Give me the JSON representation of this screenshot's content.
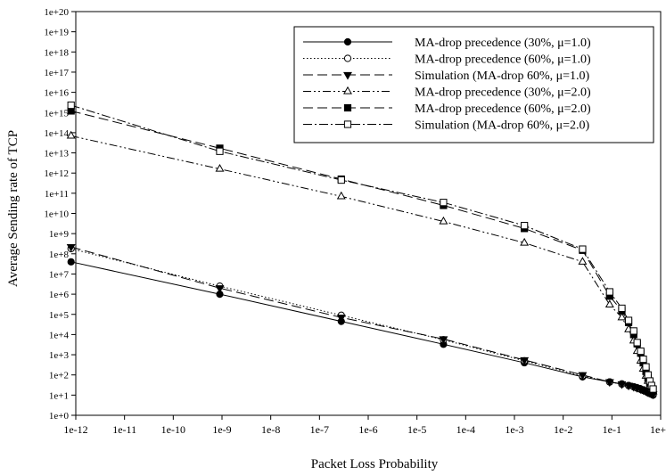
{
  "chart_data": {
    "type": "line",
    "title": "",
    "xlabel": "Packet Loss Probability",
    "ylabel": "Average Sending rate of TCP",
    "x_scale": "log",
    "y_scale": "log",
    "xlim": [
      1e-12,
      1
    ],
    "ylim": [
      1,
      1e+20
    ],
    "grid": false,
    "legend_position": "top-right",
    "x_ticks": [
      {
        "value": 1e-12,
        "label": "1e-12"
      },
      {
        "value": 1e-11,
        "label": "1e-11"
      },
      {
        "value": 1e-10,
        "label": "1e-10"
      },
      {
        "value": 1e-09,
        "label": "1e-9"
      },
      {
        "value": 1e-08,
        "label": "1e-8"
      },
      {
        "value": 1e-07,
        "label": "1e-7"
      },
      {
        "value": 1e-06,
        "label": "1e-6"
      },
      {
        "value": 1e-05,
        "label": "1e-5"
      },
      {
        "value": 0.0001,
        "label": "1e-4"
      },
      {
        "value": 0.001,
        "label": "1e-3"
      },
      {
        "value": 0.01,
        "label": "1e-2"
      },
      {
        "value": 0.1,
        "label": "1e-1"
      },
      {
        "value": 1,
        "label": "1e+0"
      }
    ],
    "y_ticks": [
      {
        "value": 1,
        "label": "1e+0"
      },
      {
        "value": 10.0,
        "label": "1e+1"
      },
      {
        "value": 100.0,
        "label": "1e+2"
      },
      {
        "value": 1000.0,
        "label": "1e+3"
      },
      {
        "value": 10000.0,
        "label": "1e+4"
      },
      {
        "value": 100000.0,
        "label": "1e+5"
      },
      {
        "value": 1000000.0,
        "label": "1e+6"
      },
      {
        "value": 10000000.0,
        "label": "1e+7"
      },
      {
        "value": 100000000.0,
        "label": "1e+8"
      },
      {
        "value": 1000000000.0,
        "label": "1e+9"
      },
      {
        "value": 10000000000.0,
        "label": "1e+10"
      },
      {
        "value": 100000000000.0,
        "label": "1e+11"
      },
      {
        "value": 1000000000000.0,
        "label": "1e+12"
      },
      {
        "value": 10000000000000.0,
        "label": "1e+13"
      },
      {
        "value": 100000000000000.0,
        "label": "1e+14"
      },
      {
        "value": 1000000000000000.0,
        "label": "1e+15"
      },
      {
        "value": 1e+16,
        "label": "1e+16"
      },
      {
        "value": 1e+17,
        "label": "1e+17"
      },
      {
        "value": 1e+18,
        "label": "1e+18"
      },
      {
        "value": 1e+19,
        "label": "1e+19"
      },
      {
        "value": 1e+20,
        "label": "1e+20"
      }
    ],
    "series": [
      {
        "name": "MA-drop precedence (30%, μ=1.0)",
        "marker": "circle-filled",
        "dash": "solid",
        "x": [
          8e-13,
          9e-10,
          2.8e-07,
          3.5e-05,
          0.0016,
          0.025,
          0.09,
          0.16,
          0.22,
          0.28,
          0.33,
          0.39,
          0.44,
          0.5,
          0.55,
          0.6,
          0.65,
          0.7
        ],
        "y": [
          40000000.0,
          1000000.0,
          45000.0,
          3300.0,
          400.0,
          80.0,
          45.0,
          36.0,
          30.0,
          26.0,
          22.0,
          19.0,
          17.0,
          15.0,
          13.0,
          12.0,
          11.0,
          10.0
        ]
      },
      {
        "name": "MA-drop precedence (60%, μ=1.0)",
        "marker": "circle-open",
        "dash": "dotted",
        "x": [
          8e-13,
          9e-10,
          2.8e-07,
          3.5e-05,
          0.0016,
          0.025,
          0.09,
          0.16,
          0.22,
          0.28,
          0.33,
          0.39,
          0.44,
          0.5,
          0.55,
          0.6,
          0.65,
          0.7
        ],
        "y": [
          180000000.0,
          2500000.0,
          90000.0,
          5500.0,
          500.0,
          90.0,
          45.0,
          35.0,
          30.0,
          26.0,
          23.0,
          20.0,
          18.0,
          16.0,
          14.0,
          13.0,
          12.0,
          11.0
        ]
      },
      {
        "name": "Simulation (MA-drop 60%, μ=1.0)",
        "marker": "triangle-down-filled",
        "dash": "longdash",
        "x": [
          8e-13,
          9e-10,
          2.8e-07,
          3.5e-05,
          0.0016,
          0.025,
          0.09,
          0.16,
          0.22,
          0.28,
          0.33,
          0.39,
          0.44,
          0.5,
          0.55,
          0.6,
          0.65,
          0.7
        ],
        "y": [
          220000000.0,
          2000000.0,
          70000.0,
          6000.0,
          550.0,
          100.0,
          45.0,
          35.0,
          30.0,
          26.0,
          23.0,
          20.0,
          18.0,
          16.0,
          14.0,
          13.0,
          12.0,
          11.0
        ]
      },
      {
        "name": "MA-drop precedence (30%, μ=2.0)",
        "marker": "triangle-up-open",
        "dash": "dashdotdot",
        "x": [
          8e-13,
          9e-10,
          2.8e-07,
          3.5e-05,
          0.0016,
          0.025,
          0.09,
          0.16,
          0.22,
          0.28,
          0.33,
          0.39,
          0.44,
          0.5,
          0.55,
          0.6,
          0.65,
          0.7
        ],
        "y": [
          70000000000000.0,
          1600000000000.0,
          70000000000.0,
          4000000000.0,
          350000000.0,
          40000000.0,
          300000.0,
          70000.0,
          18000.0,
          5000.0,
          1500.0,
          500.0,
          200.0,
          90.0,
          50.0,
          30.0,
          20.0,
          15.0
        ]
      },
      {
        "name": "MA-drop precedence (60%, μ=2.0)",
        "marker": "square-filled",
        "dash": "longdash",
        "x": [
          8e-13,
          9e-10,
          2.8e-07,
          3.5e-05,
          0.0016,
          0.025,
          0.09,
          0.16,
          0.22,
          0.28,
          0.33,
          0.39,
          0.44,
          0.5,
          0.55,
          0.6,
          0.65,
          0.7
        ],
        "y": [
          1200000000000000.0,
          17000000000000.0,
          500000000000.0,
          25000000000.0,
          1800000000.0,
          150000000.0,
          800000.0,
          150000.0,
          40000.0,
          10000.0,
          3500.0,
          1200.0,
          400.0,
          150.0,
          70.0,
          40.0,
          25.0,
          18.0
        ]
      },
      {
        "name": "Simulation (MA-drop 60%, μ=2.0)",
        "marker": "square-open",
        "dash": "dashdot",
        "x": [
          8e-13,
          9e-10,
          2.8e-07,
          3.5e-05,
          0.0016,
          0.025,
          0.09,
          0.16,
          0.22,
          0.28,
          0.33,
          0.39,
          0.44,
          0.5,
          0.55,
          0.6,
          0.65,
          0.7
        ],
        "y": [
          2300000000000000.0,
          12000000000000.0,
          450000000000.0,
          35000000000.0,
          2500000000.0,
          170000000.0,
          1300000.0,
          200000.0,
          50000.0,
          15000.0,
          4000.0,
          1500.0,
          600.0,
          250.0,
          100.0,
          50.0,
          30.0,
          20.0
        ]
      }
    ]
  }
}
